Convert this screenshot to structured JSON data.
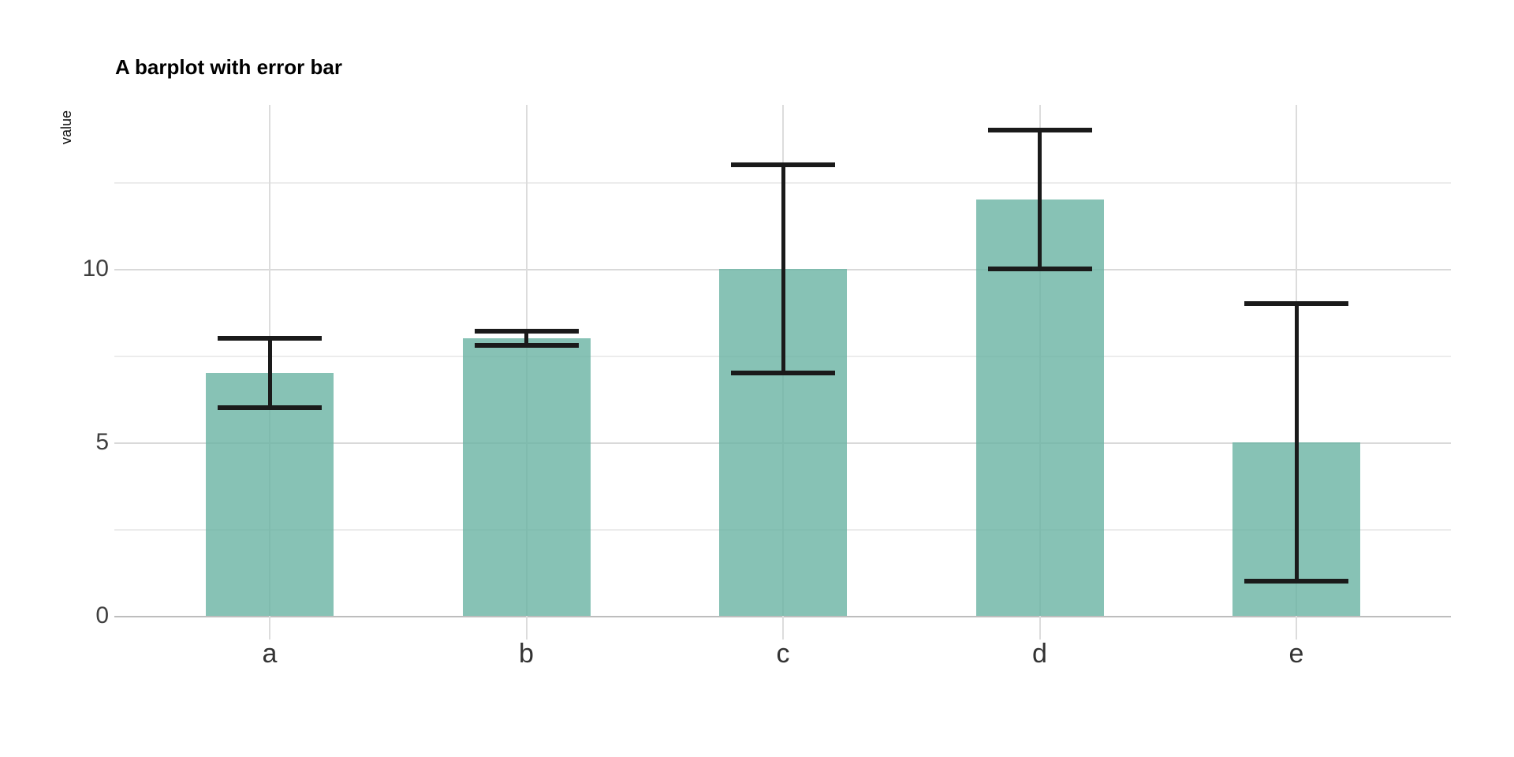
{
  "chart_data": {
    "type": "bar",
    "title": "A barplot with error bar",
    "ylabel": "value",
    "xlabel": "",
    "categories": [
      "a",
      "b",
      "c",
      "d",
      "e"
    ],
    "values": [
      7,
      8,
      10,
      12,
      5
    ],
    "error_low": [
      6,
      7.8,
      7,
      10,
      1
    ],
    "error_high": [
      8,
      8.2,
      13,
      14,
      9
    ],
    "yticks": [
      0,
      5,
      10
    ],
    "minor_gridlines": [
      2.5,
      7.5,
      12.5
    ],
    "ylim": [
      -0.7,
      14.7
    ],
    "grid": "major and minor horizontal, vertical at categories",
    "legend": "none",
    "bar_color": "#69b3a2",
    "bar_opacity": 0.8,
    "error_color": "#1a1a1a",
    "background": "#ffffff"
  }
}
